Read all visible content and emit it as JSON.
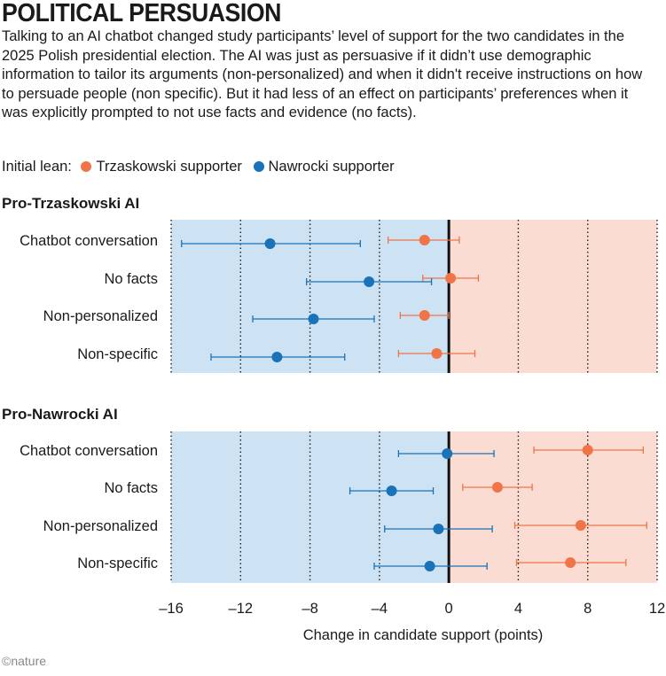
{
  "header": {
    "title": "POLITICAL PERSUASION",
    "subtitle": "Talking to an AI chatbot changed study participants’ level of support for the two candidates in the 2025 Polish presidential election. The AI was just as persuasive if it didn’t use demographic information to tailor its arguments (non-personalized) and when it didn't receive instructions on how to persuade people (non specific). But it had less of an effect on participants’ preferences when it was explicitly prompted to not use facts and evidence (no facts)."
  },
  "legend": {
    "label": "Initial lean:",
    "items": [
      {
        "label": "Trzaskowski supporter",
        "color": "#f07448"
      },
      {
        "label": "Nawrocki supporter",
        "color": "#1a72b8"
      }
    ]
  },
  "footer": {
    "credit": "©nature"
  },
  "chart_data": {
    "type": "scatter",
    "xlabel": "Change in candidate support (points)",
    "xlim": [
      -16,
      12
    ],
    "xticks": [
      "–16",
      "–12",
      "–8",
      "–4",
      "0",
      "4",
      "8",
      "12"
    ],
    "xtick_values": [
      -16,
      -12,
      -8,
      -4,
      0,
      4,
      8,
      12
    ],
    "grid": "vertical dotted",
    "background_colors": {
      "negative": "#cde2f2",
      "positive": "#fadcd2"
    },
    "panels": [
      {
        "title": "Pro-Trzaskowski AI",
        "categories": [
          "Chatbot conversation",
          "No facts",
          "Non-personalized",
          "Non-specific"
        ],
        "series": [
          {
            "name": "Trzaskowski supporter",
            "color": "#f07448",
            "values": [
              -1.4,
              0.1,
              -1.4,
              -0.7
            ],
            "lower": [
              -3.5,
              -1.5,
              -2.8,
              -2.9
            ],
            "upper": [
              0.6,
              1.7,
              0.0,
              1.5
            ]
          },
          {
            "name": "Nawrocki supporter",
            "color": "#1a72b8",
            "values": [
              -10.3,
              -4.6,
              -7.8,
              -9.9
            ],
            "lower": [
              -15.4,
              -8.2,
              -11.3,
              -13.7
            ],
            "upper": [
              -5.1,
              -1.0,
              -4.3,
              -6.0
            ]
          }
        ]
      },
      {
        "title": "Pro-Nawrocki AI",
        "categories": [
          "Chatbot conversation",
          "No facts",
          "Non-personalized",
          "Non-specific"
        ],
        "series": [
          {
            "name": "Trzaskowski supporter",
            "color": "#f07448",
            "values": [
              8.0,
              2.8,
              7.6,
              7.0
            ],
            "lower": [
              4.9,
              0.8,
              3.8,
              3.9
            ],
            "upper": [
              11.2,
              4.8,
              11.4,
              10.2
            ]
          },
          {
            "name": "Nawrocki supporter",
            "color": "#1a72b8",
            "values": [
              -0.1,
              -3.3,
              -0.6,
              -1.1
            ],
            "lower": [
              -2.9,
              -5.7,
              -3.7,
              -4.3
            ],
            "upper": [
              2.6,
              -0.9,
              2.5,
              2.2
            ]
          }
        ]
      }
    ]
  }
}
